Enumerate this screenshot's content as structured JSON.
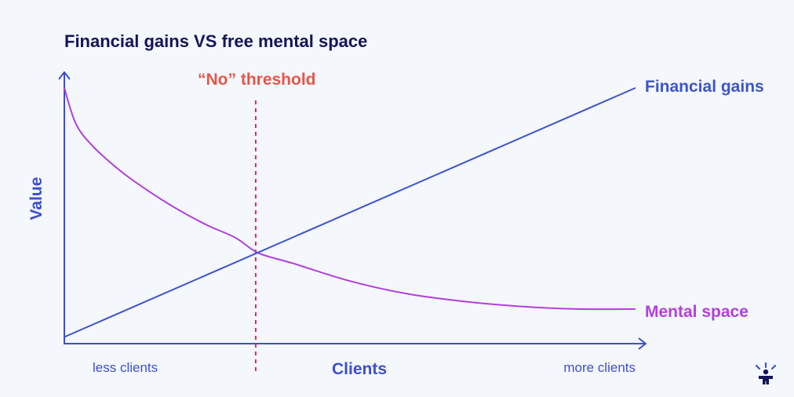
{
  "chart_data": {
    "type": "line",
    "title": "Financial gains VS free mental space",
    "xlabel": "Clients",
    "ylabel": "Value",
    "x_tick_labels": [
      "less clients",
      "more clients"
    ],
    "xlim": [
      0,
      100
    ],
    "ylim": [
      0,
      100
    ],
    "grid": false,
    "series": [
      {
        "name": "Financial gains",
        "x": [
          0,
          100
        ],
        "y": [
          2,
          100
        ]
      },
      {
        "name": "Mental space",
        "x": [
          0,
          2,
          5,
          10,
          15,
          20,
          25,
          30,
          34,
          40,
          50,
          60,
          70,
          80,
          90,
          100
        ],
        "y": [
          100,
          86,
          77,
          67,
          59,
          52,
          46,
          41,
          35,
          31,
          24,
          19,
          16,
          14,
          13,
          13
        ]
      }
    ],
    "annotations": [
      {
        "label": "“No” threshold",
        "x": 33.5
      }
    ]
  },
  "colors": {
    "axis": "#3d4fcf",
    "financial": "#3d54cc",
    "mental": "#b23fdc",
    "threshold": "#e0265e",
    "threshold_label": "#e6554a",
    "title": "#14145a",
    "tick": "#3d4fcf"
  },
  "logo": {
    "icon": "person-sun-icon"
  }
}
